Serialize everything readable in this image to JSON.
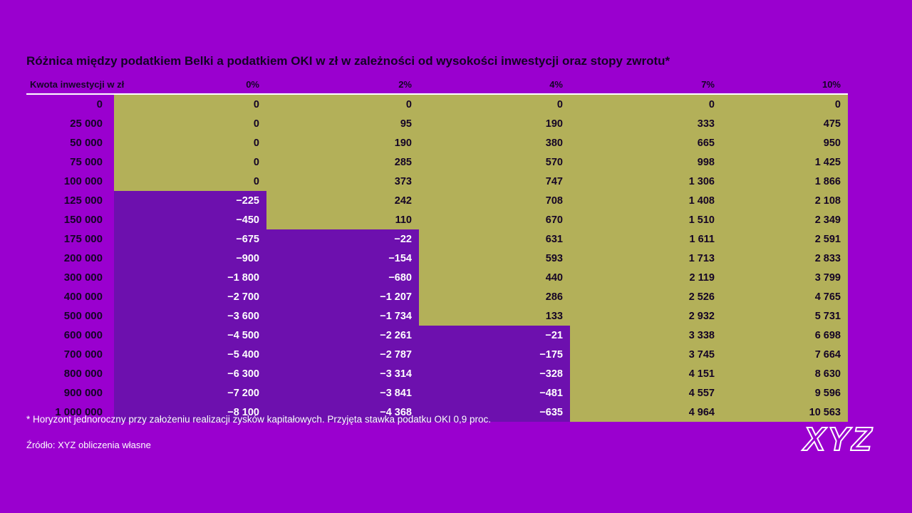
{
  "title": "Różnica między podatkiem Belki a podatkiem OKI w zł w zależności od wysokości inwestycji oraz stopy zwrotu*",
  "footnote": "* Horyzont jednoroczny przy założeniu realizacji zysków kapitałowych. Przyjęta stawka podatku OKI 0,9 proc.",
  "source": "Źródło: XYZ obliczenia własne",
  "logo": {
    "text": "XYZ"
  },
  "colors": {
    "background": "#9a00cf",
    "positive_cell": "#b3b059",
    "negative_cell": "#6d10ae",
    "dark_text": "#140425",
    "light_text": "#ffffff"
  },
  "chart_data": {
    "type": "table",
    "title": "Różnica między podatkiem Belki a podatkiem OKI w zł w zależności od wysokości inwestycji oraz stopy zwrotu*",
    "columns": [
      "Kwota inwestycji w zł",
      "0%",
      "2%",
      "4%",
      "7%",
      "10%"
    ],
    "legend": "negative values shown on purple background with white text, non-negative on olive background with dark text",
    "rows": [
      {
        "label": "0",
        "values": [
          "0",
          "0",
          "0",
          "0",
          "0"
        ]
      },
      {
        "label": "25 000",
        "values": [
          "0",
          "95",
          "190",
          "333",
          "475"
        ]
      },
      {
        "label": "50 000",
        "values": [
          "0",
          "190",
          "380",
          "665",
          "950"
        ]
      },
      {
        "label": "75 000",
        "values": [
          "0",
          "285",
          "570",
          "998",
          "1 425"
        ]
      },
      {
        "label": "100 000",
        "values": [
          "0",
          "373",
          "747",
          "1 306",
          "1 866"
        ]
      },
      {
        "label": "125 000",
        "values": [
          "−225",
          "242",
          "708",
          "1 408",
          "2 108"
        ]
      },
      {
        "label": "150 000",
        "values": [
          "−450",
          "110",
          "670",
          "1 510",
          "2 349"
        ]
      },
      {
        "label": "175 000",
        "values": [
          "−675",
          "−22",
          "631",
          "1 611",
          "2 591"
        ]
      },
      {
        "label": "200 000",
        "values": [
          "−900",
          "−154",
          "593",
          "1 713",
          "2 833"
        ]
      },
      {
        "label": "300 000",
        "values": [
          "−1 800",
          "−680",
          "440",
          "2 119",
          "3 799"
        ]
      },
      {
        "label": "400 000",
        "values": [
          "−2 700",
          "−1 207",
          "286",
          "2 526",
          "4 765"
        ]
      },
      {
        "label": "500 000",
        "values": [
          "−3 600",
          "−1 734",
          "133",
          "2 932",
          "5 731"
        ]
      },
      {
        "label": "600 000",
        "values": [
          "−4 500",
          "−2 261",
          "−21",
          "3 338",
          "6 698"
        ]
      },
      {
        "label": "700 000",
        "values": [
          "−5 400",
          "−2 787",
          "−175",
          "3 745",
          "7 664"
        ]
      },
      {
        "label": "800 000",
        "values": [
          "−6 300",
          "−3 314",
          "−328",
          "4 151",
          "8 630"
        ]
      },
      {
        "label": "900 000",
        "values": [
          "−7 200",
          "−3 841",
          "−481",
          "4 557",
          "9 596"
        ]
      },
      {
        "label": "1 000 000",
        "values": [
          "−8 100",
          "−4 368",
          "−635",
          "4 964",
          "10 563"
        ]
      }
    ]
  }
}
